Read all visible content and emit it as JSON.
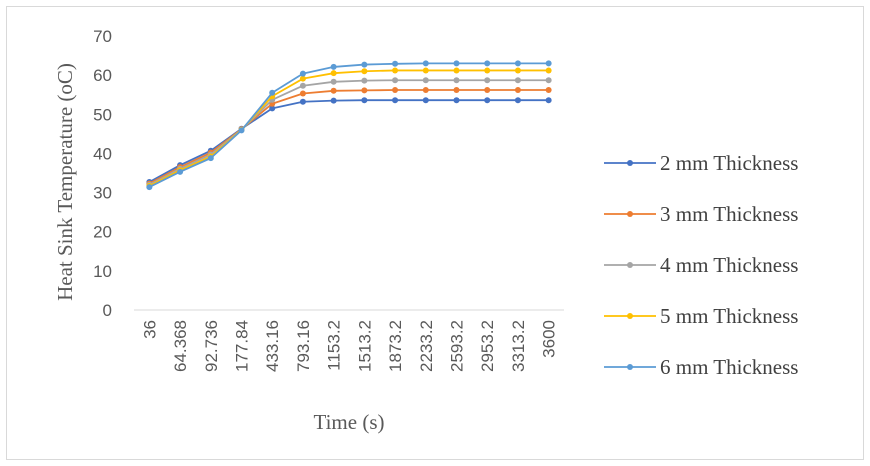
{
  "chart_data": {
    "type": "line",
    "title": "",
    "xlabel": "Time (s)",
    "ylabel": "Heat Sink Temperature (oC)",
    "ylim": [
      0,
      70
    ],
    "yticks": [
      0,
      10,
      20,
      30,
      40,
      50,
      60,
      70
    ],
    "grid": false,
    "legend_position": "right",
    "categories": [
      "36",
      "64.368",
      "92.736",
      "177.84",
      "433.16",
      "793.16",
      "1153.2",
      "1513.2",
      "1873.2",
      "2233.2",
      "2593.2",
      "2953.2",
      "3313.2",
      "3600"
    ],
    "series": [
      {
        "name": "2 mm Thickness",
        "color": "#4472C4",
        "values": [
          32.7,
          37.0,
          40.7,
          46.3,
          51.5,
          53.2,
          53.5,
          53.6,
          53.6,
          53.6,
          53.6,
          53.6,
          53.6,
          53.6
        ]
      },
      {
        "name": "3 mm Thickness",
        "color": "#ED7D31",
        "values": [
          32.3,
          36.5,
          40.2,
          46.2,
          52.7,
          55.3,
          56.0,
          56.1,
          56.2,
          56.2,
          56.2,
          56.2,
          56.2,
          56.2
        ]
      },
      {
        "name": "4 mm Thickness",
        "color": "#A5A5A5",
        "values": [
          32.0,
          36.1,
          39.7,
          46.1,
          53.7,
          57.3,
          58.3,
          58.6,
          58.7,
          58.7,
          58.7,
          58.7,
          58.7,
          58.7
        ]
      },
      {
        "name": "5 mm Thickness",
        "color": "#FFC000",
        "values": [
          31.7,
          35.7,
          39.2,
          46.0,
          54.6,
          59.1,
          60.5,
          61.0,
          61.2,
          61.2,
          61.2,
          61.2,
          61.2,
          61.2
        ]
      },
      {
        "name": "6 mm Thickness",
        "color": "#5B9BD5",
        "values": [
          31.4,
          35.3,
          38.8,
          45.9,
          55.5,
          60.4,
          62.1,
          62.7,
          62.9,
          63.0,
          63.0,
          63.0,
          63.0,
          63.0
        ]
      }
    ]
  }
}
